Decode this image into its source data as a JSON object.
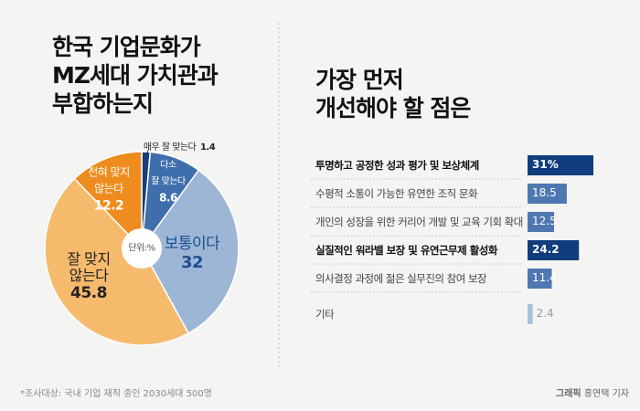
{
  "chart_data": [
    {
      "type": "pie",
      "title": "한국 기업문화가\nMZ세대 가치관과\n부합하는지",
      "unit": "단위:%",
      "categories": [
        "매우 잘 맞는다",
        "다소\n잘 맞는다",
        "보통이다",
        "잘 맞지\n않는다",
        "전혀 맞지\n않는다"
      ],
      "values": [
        1.4,
        8.6,
        32,
        45.8,
        12.2
      ],
      "colors": [
        "#163f7c",
        "#3f6ead",
        "#9db6d6",
        "#f6ba6d",
        "#ef8c1f"
      ]
    },
    {
      "type": "hbar",
      "title": "가장 먼저\n개선해야 할 점은",
      "categories": [
        "투명하고 공정한 성과 평가 및 보상체계",
        "수평적 소통이 가능한 유연한 조직 문화",
        "개인의 성장을 위한 커리어 개발 및 교육 기회 확대",
        "실질적인 워라밸 보장 및 유연근무제 활성화",
        "의사결정 과정에 젊은 실무진의 참여 보장",
        "기타"
      ],
      "values": [
        31,
        18.5,
        12.5,
        24.2,
        11.4,
        2.4
      ],
      "value_labels": [
        "31%",
        "18.5",
        "12.5",
        "24.2",
        "11.4",
        "2.4"
      ],
      "colors": [
        "#103d7e",
        "#4f78b2",
        "#4f78b2",
        "#103d7e",
        "#4f78b2",
        "#a9c0de"
      ],
      "bold": [
        true,
        false,
        false,
        true,
        false,
        false
      ]
    }
  ],
  "footer": {
    "note": "*조사대상: 국내 기업 재직 중인 2030세대 500명",
    "credit_label": "그래픽",
    "credit_name": "홍연택 기자"
  }
}
